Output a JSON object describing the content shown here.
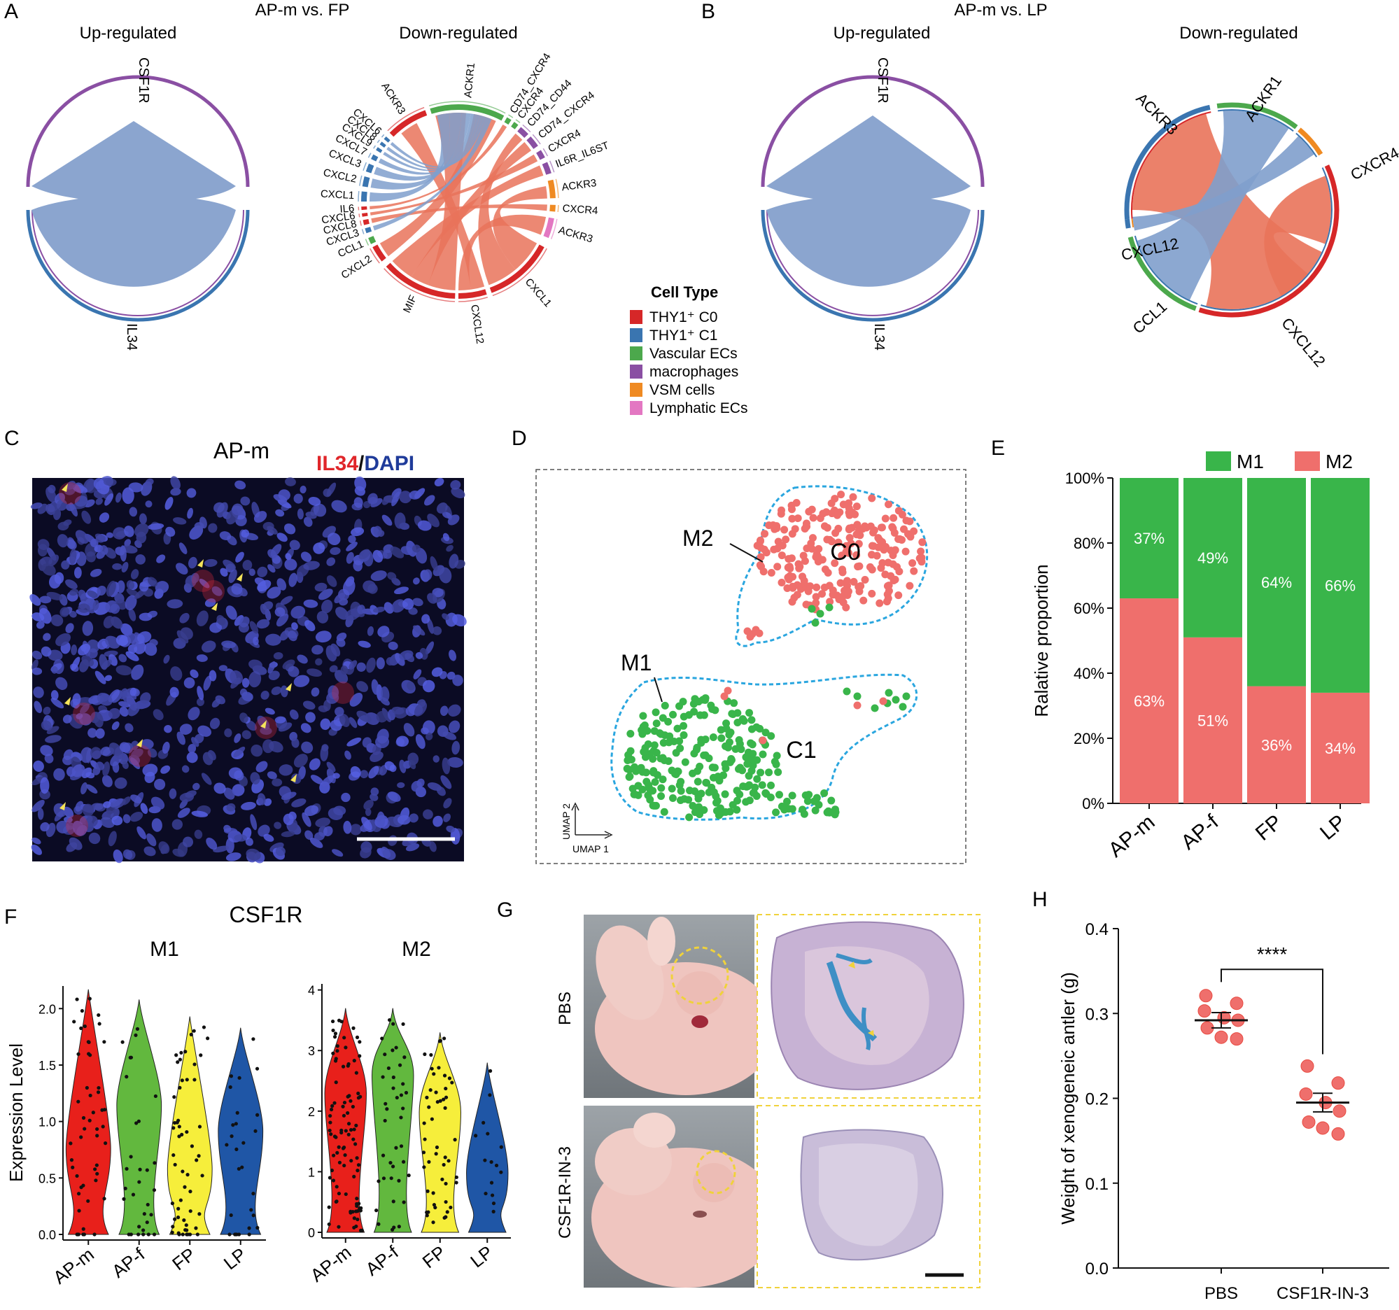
{
  "panelA": {
    "letter": "A",
    "title": "AP-m vs. FP",
    "up_label": "Up-regulated",
    "down_label": "Down-regulated",
    "up_top": "CSF1R",
    "up_bottom": "IL34",
    "down_labels": [
      "ACKR3",
      "ACKR1",
      "CD74_CXCR4",
      "CXCR4",
      "CD74_CD44",
      "CD74_CXCR4",
      "CXCR4",
      "IL6R_IL6ST",
      "ACKR3",
      "CXCR4",
      "ACKR3",
      "CXCL1",
      "CXCL12",
      "MIF",
      "CXCL2",
      "CCL1",
      "CXCL3",
      "CXCL8",
      "CXCL6",
      "IL6",
      "CXCL1",
      "CXCL2",
      "CXCL3",
      "CXCL7",
      "CXCL9",
      "CXCL8",
      "CXCL6"
    ]
  },
  "panelB": {
    "letter": "B",
    "title": "AP-m vs. LP",
    "up_label": "Up-regulated",
    "down_label": "Down-regulated",
    "up_top": "CSF1R",
    "up_bottom": "IL34",
    "down_labels": [
      "ACKR3",
      "ACKR1",
      "CXCR4",
      "CXCL12",
      "CCL1",
      "CXCL12"
    ]
  },
  "legend": {
    "title": "Cell Type",
    "items": [
      {
        "label": "THY1⁺ C0",
        "color": "#d62728"
      },
      {
        "label": "THY1⁺ C1",
        "color": "#3a75b0"
      },
      {
        "label": "Vascular ECs",
        "color": "#4ca84c"
      },
      {
        "label": "macrophages",
        "color": "#8a4fa3"
      },
      {
        "label": "VSM cells",
        "color": "#ef8a22"
      },
      {
        "label": "Lymphatic ECs",
        "color": "#e377c2"
      }
    ]
  },
  "panelC": {
    "letter": "C",
    "title": "AP-m",
    "stain1": "IL34",
    "slash": "/",
    "stain2": "DAPI"
  },
  "panelD": {
    "letter": "D",
    "cluster_top": "C0",
    "cluster_bottom": "C1",
    "callout_top": "M2",
    "callout_bottom": "M1",
    "axis_x": "UMAP 1",
    "axis_y": "UMAP 2",
    "colors": {
      "M2": "#ef6f6c",
      "M1": "#39b54a",
      "outline": "#2aa6df"
    }
  },
  "panelE": {
    "letter": "E",
    "colors": {
      "M1": "#39b54a",
      "M2": "#ef6f6c"
    },
    "chart_data": {
      "type": "bar",
      "stacked": true,
      "categories": [
        "AP-m",
        "AP-f",
        "FP",
        "LP"
      ],
      "series": [
        {
          "name": "M2",
          "values": [
            63,
            51,
            36,
            34
          ],
          "labels": [
            "63%",
            "51%",
            "36%",
            "34%"
          ]
        },
        {
          "name": "M1",
          "values": [
            37,
            49,
            64,
            66
          ],
          "labels": [
            "37%",
            "49%",
            "64%",
            "66%"
          ]
        }
      ],
      "ylabel": "Ralative proportion",
      "yticks": [
        "0%",
        "20%",
        "40%",
        "60%",
        "80%",
        "100%"
      ],
      "ylim": [
        0,
        100
      ],
      "legend": [
        "M1",
        "M2"
      ]
    }
  },
  "panelF": {
    "letter": "F",
    "title": "CSF1R",
    "ylabel": "Expression Level",
    "colors": [
      "#e8201b",
      "#62b83e",
      "#f6ee3b",
      "#1f56a6"
    ],
    "charts": [
      {
        "subtitle": "M1",
        "type": "violin",
        "categories": [
          "AP-m",
          "AP-f",
          "FP",
          "LP"
        ],
        "yticks": [
          "0.0",
          "0.5",
          "1.0",
          "1.5",
          "2.0"
        ],
        "ylim": [
          0,
          2.2
        ],
        "max": [
          2.17,
          2.08,
          1.93,
          1.83
        ]
      },
      {
        "subtitle": "M2",
        "type": "violin",
        "categories": [
          "AP-m",
          "AP-f",
          "FP",
          "LP"
        ],
        "yticks": [
          "0",
          "1",
          "2",
          "3",
          "4"
        ],
        "ylim": [
          0,
          4.1
        ],
        "max": [
          3.7,
          3.7,
          3.3,
          2.8
        ]
      }
    ]
  },
  "panelG": {
    "letter": "G",
    "row1": "PBS",
    "row2": "CSF1R-IN-3"
  },
  "panelH": {
    "letter": "H",
    "significance": "****",
    "chart_data": {
      "type": "scatter",
      "categories": [
        "PBS",
        "CSF1R-IN-3"
      ],
      "ylabel": "Weight of xenogeneic antler (g)",
      "yticks": [
        "0.0",
        "0.1",
        "0.2",
        "0.3",
        "0.4"
      ],
      "ylim": [
        0,
        0.4
      ],
      "means": [
        0.292,
        0.195
      ],
      "sem": [
        0.009,
        0.011
      ],
      "points": [
        [
          0.321,
          0.312,
          0.303,
          0.295,
          0.292,
          0.283,
          0.272,
          0.27
        ],
        [
          0.238,
          0.218,
          0.205,
          0.195,
          0.185,
          0.172,
          0.165,
          0.158
        ]
      ]
    }
  }
}
